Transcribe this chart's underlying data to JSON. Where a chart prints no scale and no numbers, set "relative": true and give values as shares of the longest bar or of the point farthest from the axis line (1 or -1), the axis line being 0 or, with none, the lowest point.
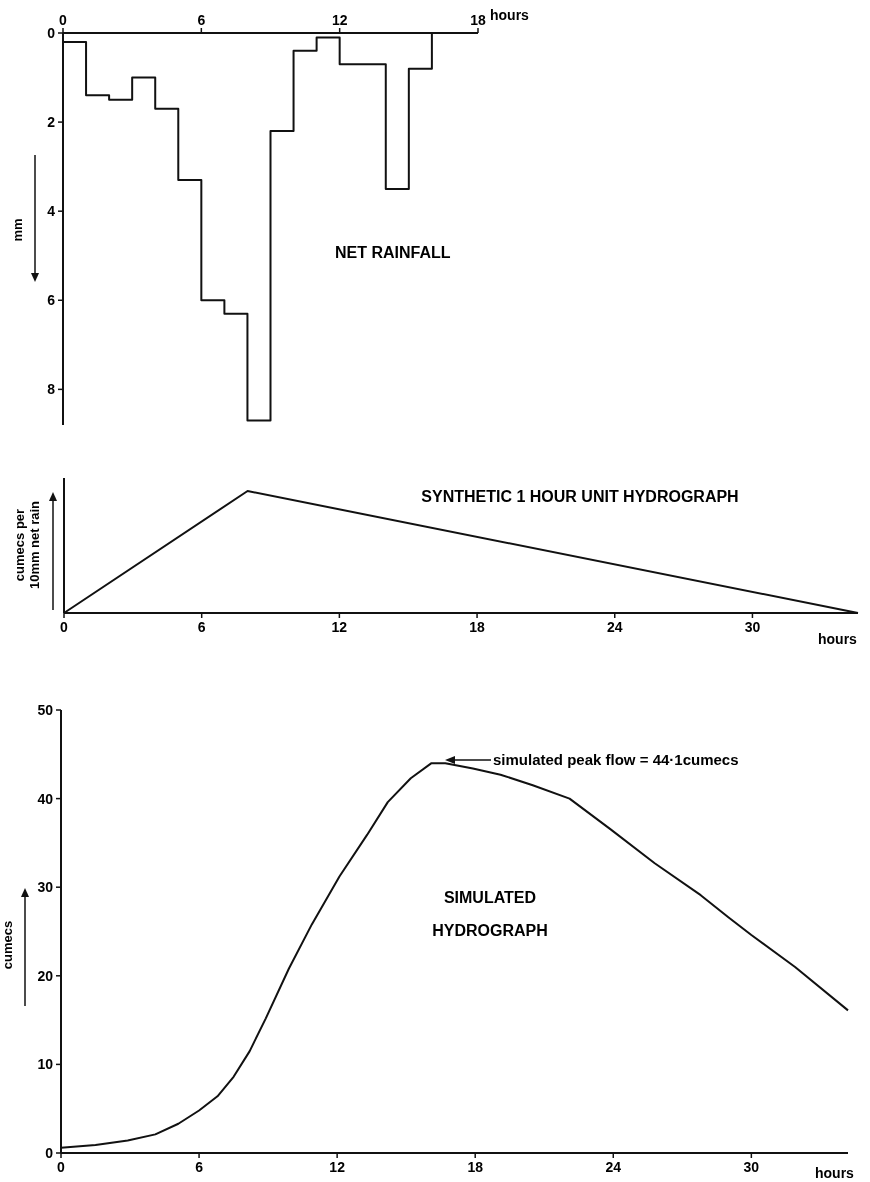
{
  "chart_data": [
    {
      "type": "step",
      "title": "NET RAINFALL",
      "xlabel": "hours",
      "ylabel": "mm",
      "x": [
        0,
        1,
        2,
        3,
        4,
        5,
        6,
        7,
        8,
        9,
        10,
        11,
        12,
        13,
        14,
        15,
        16
      ],
      "values": [
        0.2,
        1.4,
        1.5,
        1.0,
        1.7,
        3.3,
        6.0,
        6.3,
        8.7,
        2.2,
        0.4,
        0.1,
        0.7,
        0.7,
        3.5,
        0.8,
        0
      ],
      "color": "#111111",
      "xlim": [
        0,
        18
      ],
      "xticks": [
        0,
        6,
        12,
        18
      ],
      "ylim": [
        8.8,
        0
      ],
      "yticks": [
        0,
        2,
        4,
        6,
        8
      ],
      "grid": false
    },
    {
      "type": "line",
      "title": "SYNTHETIC 1 HOUR UNIT HYDROGRAPH",
      "xlabel": "hours",
      "ylabel": "cumecs per\n10mm net rain",
      "relative": true,
      "x": [
        0,
        8,
        34.6
      ],
      "values": [
        0,
        1,
        0
      ],
      "color": "#111111",
      "xlim": [
        0,
        34.6
      ],
      "xticks": [
        0,
        6,
        12,
        18,
        24,
        30
      ],
      "grid": false
    },
    {
      "type": "line",
      "title": "SIMULATED HYDROGRAPH",
      "xlabel": "hours",
      "ylabel": "cumecs",
      "x": [
        0,
        1.5,
        2.9,
        4.1,
        5.1,
        6.0,
        6.8,
        7.5,
        8.2,
        8.9,
        9.9,
        10.9,
        12.1,
        13.3,
        14.2,
        15.2,
        16.1,
        16.7,
        17.9,
        19.1,
        20.5,
        22.1,
        23.9,
        25.8,
        27.8,
        29.0,
        30.0,
        31.9,
        34.2
      ],
      "values": [
        0.6,
        0.9,
        1.4,
        2.1,
        3.3,
        4.8,
        6.4,
        8.6,
        11.5,
        15.2,
        20.8,
        25.8,
        31.2,
        35.9,
        39.6,
        42.3,
        44.0,
        44.0,
        43.4,
        42.7,
        41.5,
        40.0,
        36.5,
        32.7,
        29.1,
        26.6,
        24.6,
        21.0,
        16.1
      ],
      "color": "#111111",
      "xlim": [
        0,
        34.2
      ],
      "xticks": [
        0,
        6,
        12,
        18,
        24,
        30
      ],
      "ylim": [
        0,
        50
      ],
      "yticks": [
        0,
        10,
        20,
        30,
        40,
        50
      ],
      "grid": false,
      "annotations": [
        "simulated peak flow = 44·1cumecs"
      ]
    }
  ]
}
